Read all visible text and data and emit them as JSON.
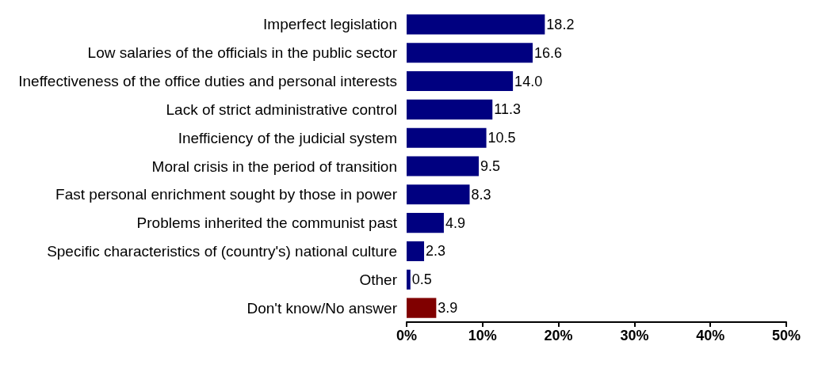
{
  "chart_data": {
    "type": "bar",
    "orientation": "horizontal",
    "categories": [
      "Imperfect legislation",
      "Low salaries of the officials in the public sector",
      "Ineffectiveness of the office duties and personal interests",
      "Lack of strict administrative control",
      "Inefficiency of the judicial system",
      "Moral crisis in the period of transition",
      "Fast personal enrichment sought by those in power",
      "Problems inherited the communist past",
      "Specific characteristics of (country's) national culture",
      "Other",
      "Don't know/No answer"
    ],
    "values": [
      18.2,
      16.6,
      14.0,
      11.3,
      10.5,
      9.5,
      8.3,
      4.9,
      2.3,
      0.5,
      3.9
    ],
    "value_labels": [
      "18.2",
      "16.6",
      "14.0",
      "11.3",
      "10.5",
      "9.5",
      "8.3",
      "4.9",
      "2.3",
      "0.5",
      "3.9"
    ],
    "colors": [
      "#000080",
      "#000080",
      "#000080",
      "#000080",
      "#000080",
      "#000080",
      "#000080",
      "#000080",
      "#000080",
      "#000080",
      "#800000"
    ],
    "xlim": [
      0,
      50
    ],
    "xticks": [
      {
        "value": 0,
        "label": "0%"
      },
      {
        "value": 10,
        "label": "10%"
      },
      {
        "value": 20,
        "label": "20%"
      },
      {
        "value": 30,
        "label": "30%"
      },
      {
        "value": 40,
        "label": "40%"
      },
      {
        "value": 50,
        "label": "50%"
      }
    ],
    "grid": false
  }
}
